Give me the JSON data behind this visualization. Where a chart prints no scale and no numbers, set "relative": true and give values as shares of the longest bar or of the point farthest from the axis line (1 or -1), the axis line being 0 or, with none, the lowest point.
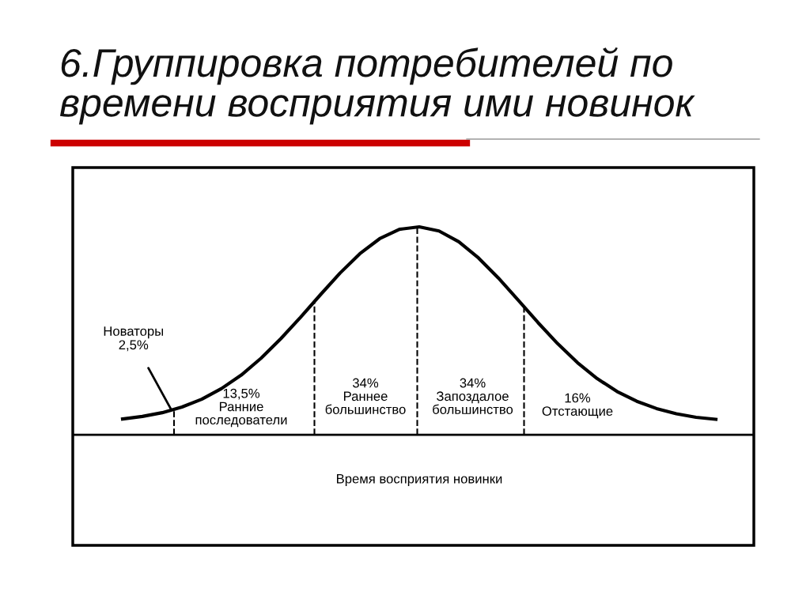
{
  "chart_data": {
    "type": "line",
    "relative": true,
    "title": "6.Группировка потребителей по\nвремени восприятия ими новинок",
    "xlabel": "Время восприятия новинки",
    "categories": [
      null,
      null,
      null,
      null,
      null,
      null,
      null,
      null,
      null,
      null,
      null,
      null,
      null,
      null,
      null,
      null,
      null,
      null,
      null,
      null,
      null,
      null,
      null,
      null,
      null,
      null,
      null,
      null,
      null,
      null,
      null
    ],
    "series": [
      {
        "color": "#000000",
        "values": [
          0.076,
          0.088,
          0.106,
          0.133,
          0.171,
          0.222,
          0.287,
          0.368,
          0.462,
          0.565,
          0.673,
          0.778,
          0.871,
          0.943,
          0.988,
          1.0,
          0.98,
          0.928,
          0.85,
          0.754,
          0.648,
          0.54,
          0.438,
          0.347,
          0.27,
          0.208,
          0.161,
          0.126,
          0.101,
          0.084,
          0.074
        ]
      }
    ],
    "annotations": [
      "Новаторы\n2,5%",
      "13,5%\nРанние\nпоследователи",
      "34%\nРаннее\nбольшинство",
      "34%\nЗапоздалое\nбольшинство",
      "16%\nОтстающие"
    ],
    "grid": false,
    "legend": false,
    "marker": "none",
    "line_style": "solid"
  }
}
